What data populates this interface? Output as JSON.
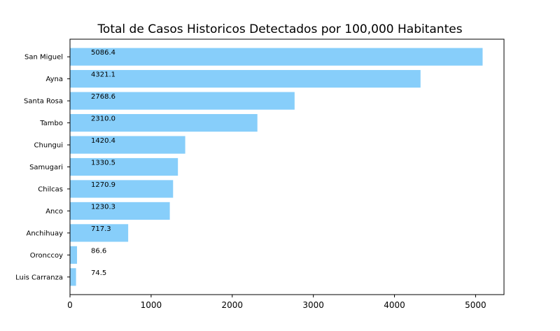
{
  "chart_data": {
    "type": "bar",
    "orientation": "horizontal",
    "title": "Total de Casos Historicos Detectados por 100,000 Habitantes",
    "xlabel": "",
    "ylabel": "",
    "categories": [
      "San Miguel",
      "Ayna",
      "Santa Rosa",
      "Tambo",
      "Chungui",
      "Samugari",
      "Chilcas",
      "Anco",
      "Anchihuay",
      "Oronccoy",
      "Luis Carranza"
    ],
    "values": [
      5086.4,
      4321.1,
      2768.6,
      2310.0,
      1420.4,
      1330.5,
      1270.9,
      1230.3,
      717.3,
      86.6,
      74.5
    ],
    "value_labels": [
      "5086.4",
      "4321.1",
      "2768.6",
      "2310.0",
      "1420.4",
      "1330.5",
      "1270.9",
      "1230.3",
      "717.3",
      "86.6",
      "74.5"
    ],
    "xlim": [
      0,
      5350
    ],
    "xticks": [
      0,
      1000,
      2000,
      3000,
      4000,
      5000
    ],
    "xtick_labels": [
      "0",
      "1000",
      "2000",
      "3000",
      "4000",
      "5000"
    ],
    "bar_color": "#87CEFA",
    "grid": false,
    "legend": "none"
  }
}
